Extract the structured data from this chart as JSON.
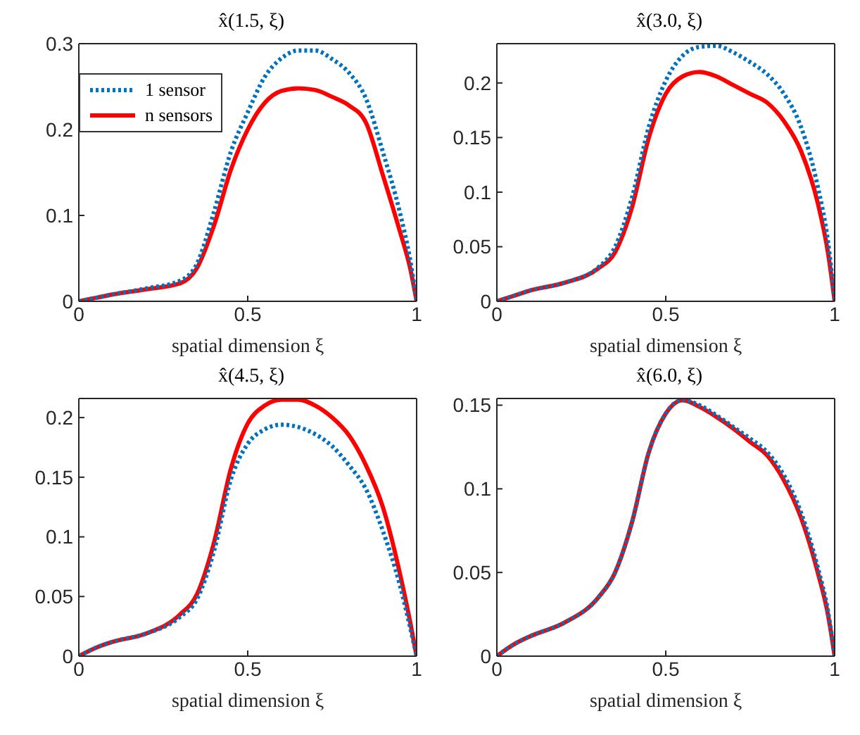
{
  "chart_data": [
    {
      "type": "line",
      "title": "x̂(1.5, ξ)",
      "xlabel": "spatial dimension ξ",
      "x": [
        0,
        0.05,
        0.1,
        0.2,
        0.3,
        0.35,
        0.4,
        0.45,
        0.5,
        0.55,
        0.6,
        0.65,
        0.7,
        0.75,
        0.8,
        0.85,
        0.9,
        0.95,
        0.98,
        1
      ],
      "xlim": [
        0,
        1
      ],
      "xticks": [
        0,
        0.5,
        1
      ],
      "ylim": [
        0,
        0.3
      ],
      "yticks": [
        0,
        0.1,
        0.2,
        0.3
      ],
      "grid": false,
      "legend": "top left",
      "series": [
        {
          "name": "1 sensor",
          "color": "#0072bd",
          "line_style": "dotted",
          "values": [
            0,
            0.004,
            0.008,
            0.015,
            0.024,
            0.044,
            0.104,
            0.174,
            0.22,
            0.261,
            0.283,
            0.292,
            0.292,
            0.282,
            0.266,
            0.236,
            0.174,
            0.104,
            0.05,
            0
          ]
        },
        {
          "name": "n sensors",
          "color": "#ff0000",
          "line_style": "solid",
          "values": [
            0,
            0.004,
            0.008,
            0.014,
            0.021,
            0.039,
            0.088,
            0.153,
            0.2,
            0.231,
            0.245,
            0.248,
            0.246,
            0.238,
            0.228,
            0.208,
            0.147,
            0.082,
            0.04,
            0
          ]
        }
      ]
    },
    {
      "type": "line",
      "title": "x̂(3.0, ξ)",
      "xlabel": "spatial dimension ξ",
      "x": [
        0,
        0.05,
        0.1,
        0.2,
        0.3,
        0.35,
        0.4,
        0.45,
        0.5,
        0.55,
        0.6,
        0.65,
        0.7,
        0.75,
        0.8,
        0.85,
        0.9,
        0.95,
        0.98,
        1
      ],
      "xlim": [
        0,
        1
      ],
      "xticks": [
        0,
        0.5,
        1
      ],
      "ylim": [
        0,
        0.236
      ],
      "yticks": [
        0,
        0.05,
        0.1,
        0.15,
        0.2
      ],
      "grid": false,
      "legend": false,
      "series": [
        {
          "color": "#0072bd",
          "line_style": "dotted",
          "values": [
            0,
            0.005,
            0.01,
            0.017,
            0.031,
            0.05,
            0.095,
            0.16,
            0.202,
            0.225,
            0.233,
            0.234,
            0.228,
            0.219,
            0.208,
            0.19,
            0.16,
            0.105,
            0.055,
            0
          ]
        },
        {
          "color": "#ff0000",
          "line_style": "solid",
          "values": [
            0,
            0.005,
            0.01,
            0.017,
            0.03,
            0.045,
            0.086,
            0.15,
            0.19,
            0.206,
            0.21,
            0.206,
            0.198,
            0.19,
            0.182,
            0.165,
            0.138,
            0.09,
            0.045,
            0
          ]
        }
      ]
    },
    {
      "type": "line",
      "title": "x̂(4.5, ξ)",
      "xlabel": "spatial dimension ξ",
      "x": [
        0,
        0.05,
        0.1,
        0.2,
        0.3,
        0.35,
        0.4,
        0.45,
        0.5,
        0.55,
        0.6,
        0.65,
        0.7,
        0.75,
        0.8,
        0.85,
        0.9,
        0.95,
        0.98,
        1
      ],
      "xlim": [
        0,
        1
      ],
      "xticks": [
        0,
        0.5,
        1
      ],
      "ylim": [
        0,
        0.216
      ],
      "yticks": [
        0,
        0.05,
        0.1,
        0.15,
        0.2
      ],
      "grid": false,
      "legend": false,
      "series": [
        {
          "color": "#0072bd",
          "line_style": "dotted",
          "values": [
            0,
            0.007,
            0.012,
            0.019,
            0.033,
            0.048,
            0.088,
            0.148,
            0.178,
            0.19,
            0.194,
            0.192,
            0.186,
            0.176,
            0.16,
            0.14,
            0.105,
            0.06,
            0.025,
            0
          ]
        },
        {
          "color": "#ff0000",
          "line_style": "solid",
          "values": [
            0,
            0.007,
            0.012,
            0.019,
            0.035,
            0.052,
            0.095,
            0.157,
            0.195,
            0.21,
            0.215,
            0.215,
            0.21,
            0.2,
            0.185,
            0.16,
            0.125,
            0.07,
            0.03,
            0
          ]
        }
      ]
    },
    {
      "type": "line",
      "title": "x̂(6.0, ξ)",
      "xlabel": "spatial dimension ξ",
      "x": [
        0,
        0.05,
        0.1,
        0.2,
        0.3,
        0.35,
        0.4,
        0.45,
        0.5,
        0.55,
        0.6,
        0.65,
        0.7,
        0.75,
        0.8,
        0.85,
        0.9,
        0.95,
        0.98,
        1
      ],
      "xlim": [
        0,
        1
      ],
      "xticks": [
        0,
        0.5,
        1
      ],
      "ylim": [
        0,
        0.154
      ],
      "yticks": [
        0,
        0.05,
        0.1,
        0.15
      ],
      "grid": false,
      "legend": false,
      "series": [
        {
          "color": "#0072bd",
          "line_style": "dotted",
          "values": [
            0,
            0.007,
            0.012,
            0.02,
            0.035,
            0.05,
            0.08,
            0.122,
            0.145,
            0.153,
            0.15,
            0.144,
            0.137,
            0.13,
            0.122,
            0.108,
            0.086,
            0.053,
            0.027,
            0
          ]
        },
        {
          "color": "#ff0000",
          "line_style": "solid",
          "values": [
            0,
            0.007,
            0.012,
            0.02,
            0.035,
            0.05,
            0.08,
            0.122,
            0.145,
            0.153,
            0.149,
            0.143,
            0.136,
            0.128,
            0.12,
            0.105,
            0.083,
            0.05,
            0.025,
            0
          ]
        }
      ]
    }
  ]
}
